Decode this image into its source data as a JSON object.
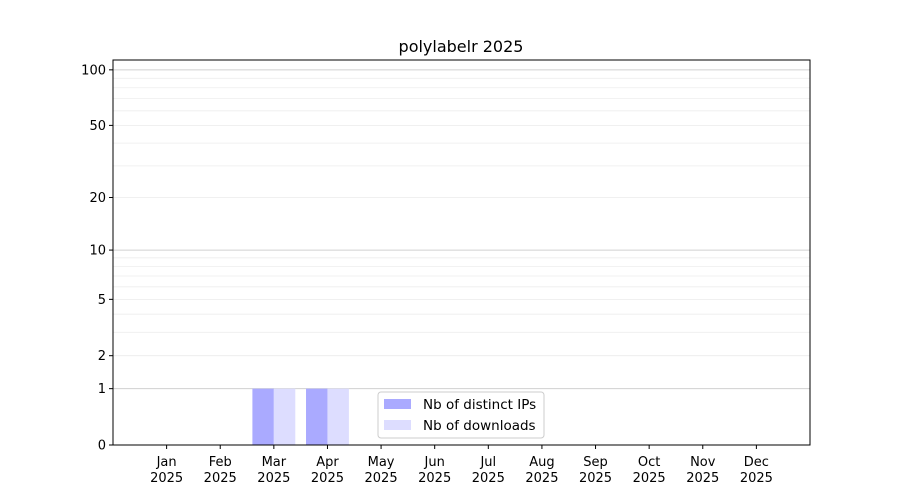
{
  "chart_data": {
    "type": "bar",
    "title": "polylabelr 2025",
    "xlabel": "",
    "ylabel": "",
    "yscale": "symlog (log10(1+y))",
    "ylim": [
      0,
      113
    ],
    "yticks": [
      0,
      1,
      2,
      5,
      10,
      20,
      50,
      100
    ],
    "ytick_labels": [
      "0",
      "1",
      "2",
      "5",
      "10",
      "20",
      "50",
      "100"
    ],
    "grid": true,
    "legend_position": "lower-center",
    "categories": [
      [
        "Jan",
        "2025"
      ],
      [
        "Feb",
        "2025"
      ],
      [
        "Mar",
        "2025"
      ],
      [
        "Apr",
        "2025"
      ],
      [
        "May",
        "2025"
      ],
      [
        "Jun",
        "2025"
      ],
      [
        "Jul",
        "2025"
      ],
      [
        "Aug",
        "2025"
      ],
      [
        "Sep",
        "2025"
      ],
      [
        "Oct",
        "2025"
      ],
      [
        "Nov",
        "2025"
      ],
      [
        "Dec",
        "2025"
      ]
    ],
    "series": [
      {
        "name": "Nb of distinct IPs",
        "color": "#aaaaff",
        "values": [
          0,
          0,
          1,
          1,
          0,
          0,
          0,
          0,
          0,
          0,
          0,
          0
        ]
      },
      {
        "name": "Nb of downloads",
        "color": "#ddddff",
        "values": [
          0,
          0,
          1,
          1,
          0,
          0,
          0,
          0,
          0,
          0,
          0,
          0
        ]
      }
    ]
  }
}
